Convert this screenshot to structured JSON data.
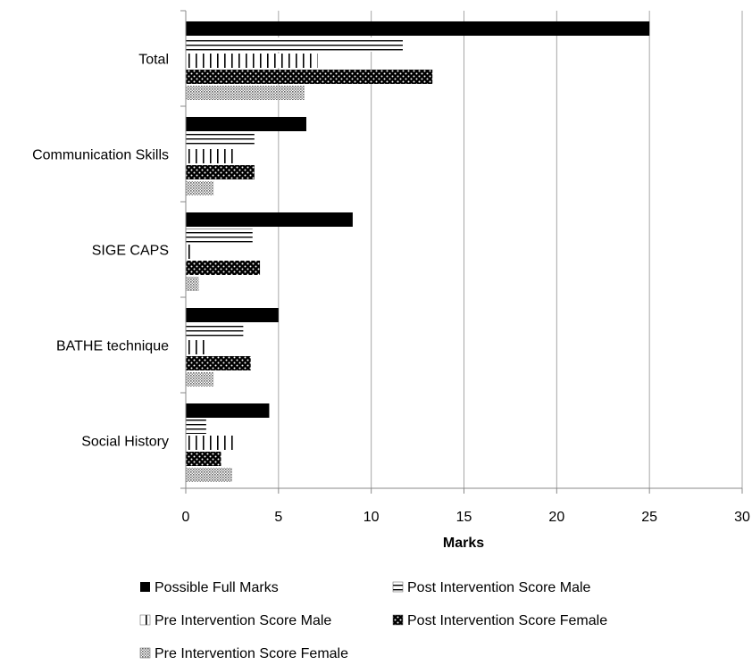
{
  "chart_data": {
    "type": "bar",
    "orientation": "horizontal",
    "categories": [
      "Total",
      "Communication Skills",
      "SIGE CAPS",
      "BATHE technique",
      "Social History"
    ],
    "series": [
      {
        "name": "Possible Full Marks",
        "values": [
          25,
          6.5,
          9,
          5,
          4.5
        ],
        "pattern": "solid"
      },
      {
        "name": "Post Intervention Score Male",
        "values": [
          11.7,
          3.7,
          3.6,
          3.1,
          1.1
        ],
        "pattern": "horizontal-lines"
      },
      {
        "name": "Pre Intervention Score Male",
        "values": [
          7.1,
          2.7,
          0.4,
          1.1,
          2.7
        ],
        "pattern": "vertical-lines"
      },
      {
        "name": "Post Intervention Score Female",
        "values": [
          13.3,
          3.7,
          4.0,
          3.5,
          1.9
        ],
        "pattern": "checker-dots"
      },
      {
        "name": "Pre Intervention Score Female",
        "values": [
          6.4,
          1.5,
          0.7,
          1.5,
          2.5
        ],
        "pattern": "fine-grid"
      }
    ],
    "xlabel": "Marks",
    "ylabel": "",
    "xlim": [
      0,
      30
    ],
    "xticks": [
      "0",
      "5",
      "10",
      "15",
      "20",
      "25",
      "30"
    ],
    "grid": true,
    "legend_position": "bottom"
  }
}
